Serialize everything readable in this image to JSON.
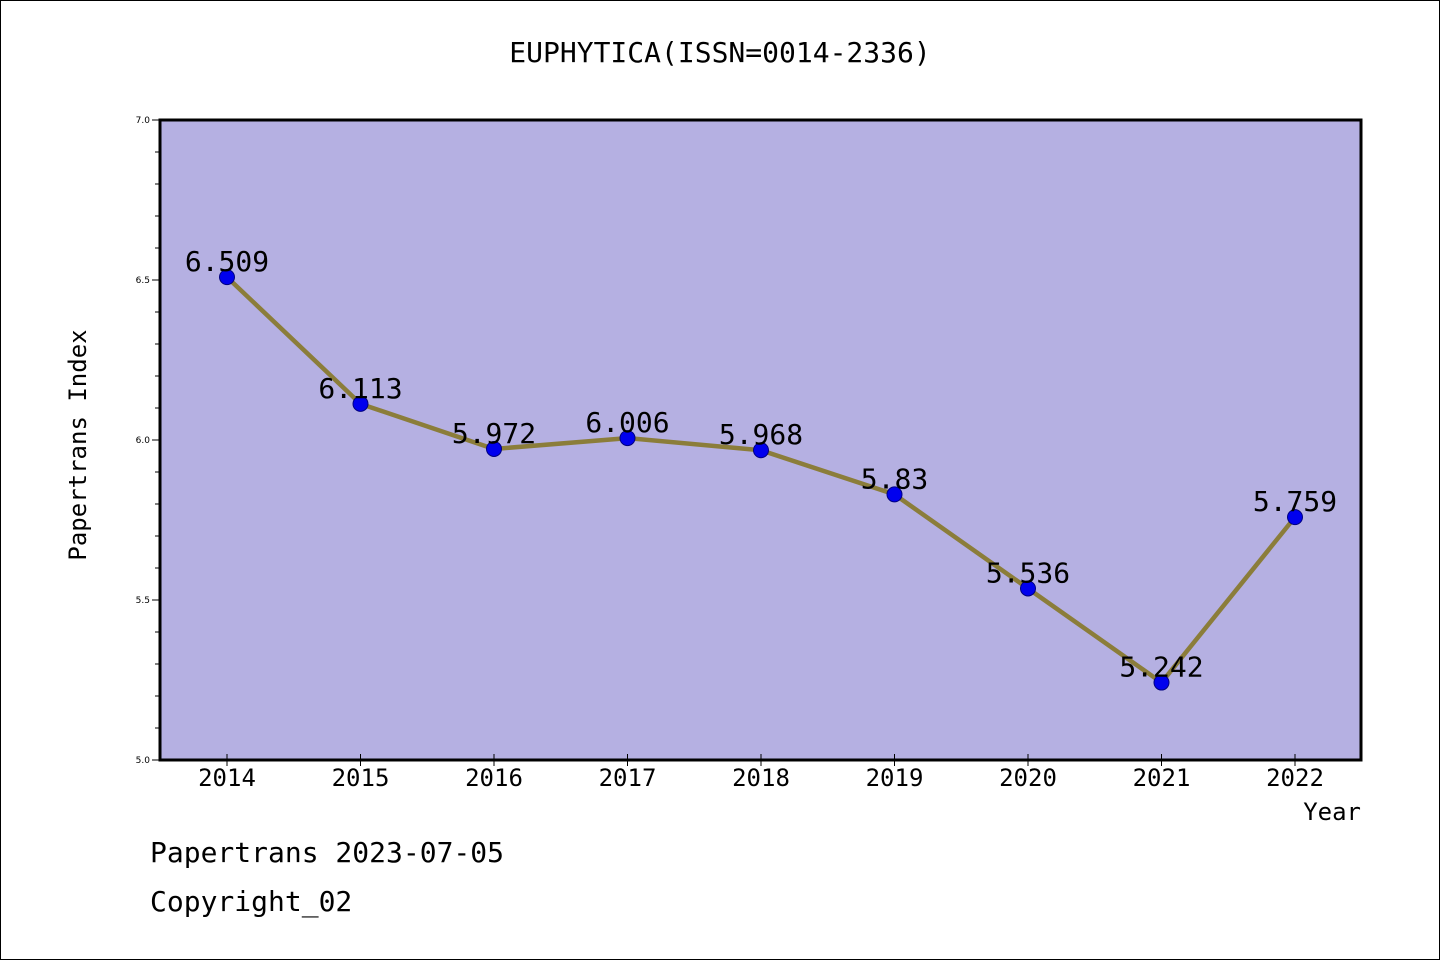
{
  "chart_data": {
    "type": "line",
    "title": "EUPHYTICA(ISSN=0014-2336)",
    "xlabel": "Year",
    "ylabel": "Papertrans Index",
    "categories": [
      "2014",
      "2015",
      "2016",
      "2017",
      "2018",
      "2019",
      "2020",
      "2021",
      "2022"
    ],
    "series": [
      {
        "values": [
          6.509,
          6.113,
          5.972,
          6.006,
          5.968,
          5.83,
          5.536,
          5.242,
          5.759
        ],
        "labels": [
          "6.509",
          "6.113",
          "5.972",
          "6.006",
          "5.968",
          "5.83",
          "5.536",
          "5.242",
          "5.759"
        ]
      }
    ],
    "ylim": [
      5.0,
      7.0
    ],
    "yticks": [
      "5.0",
      "5.5",
      "6.0",
      "6.5",
      "7.0"
    ],
    "grid": false,
    "colors": {
      "plot_background": "#b5b0e2",
      "line": "#8b7d3a",
      "marker": "#0000ee",
      "marker_edge": "#000080"
    }
  },
  "footer": {
    "date_line": "Papertrans 2023-07-05",
    "copyright": "Copyright_02"
  }
}
